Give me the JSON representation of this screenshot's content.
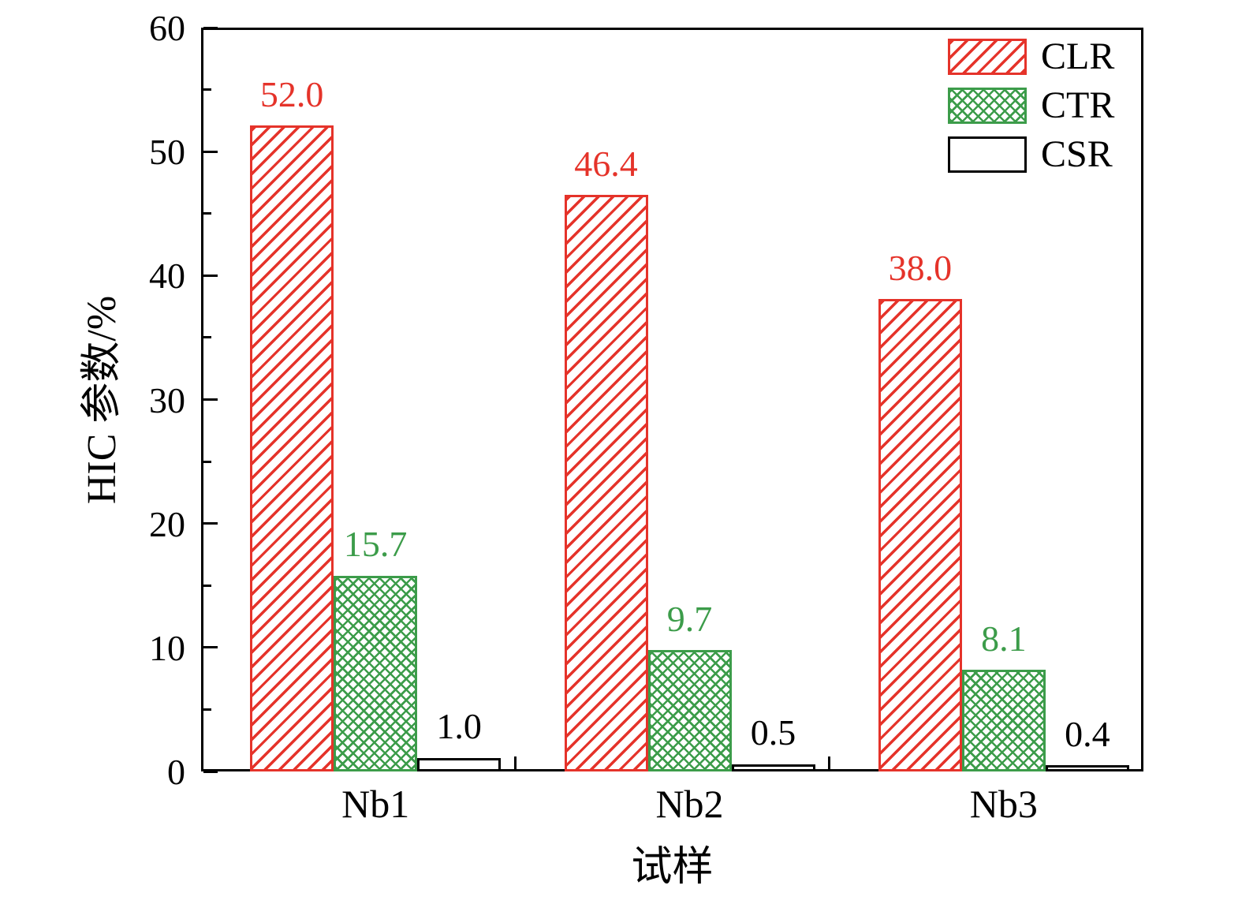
{
  "figure": {
    "background": "#ffffff",
    "axis_color": "#000000"
  },
  "chart_data": {
    "type": "bar",
    "title": "",
    "xlabel": "试样",
    "ylabel": "HIC 参数/%",
    "categories": [
      "Nb1",
      "Nb2",
      "Nb3"
    ],
    "series": [
      {
        "name": "CLR",
        "values": [
          52.0,
          46.4,
          38.0
        ],
        "value_labels": [
          "52.0",
          "46.4",
          "38.0"
        ],
        "color": "#e5332a",
        "pattern": "diagonal"
      },
      {
        "name": "CTR",
        "values": [
          15.7,
          9.7,
          8.1
        ],
        "value_labels": [
          "15.7",
          "9.7",
          "8.1"
        ],
        "color": "#3c9c4a",
        "pattern": "crosshatch"
      },
      {
        "name": "CSR",
        "values": [
          1.0,
          0.5,
          0.4
        ],
        "value_labels": [
          "1.0",
          "0.5",
          "0.4"
        ],
        "color": "#000000",
        "pattern": "none"
      }
    ],
    "ylim": [
      0,
      60
    ],
    "ytick_labels": [
      "0",
      "10",
      "20",
      "30",
      "40",
      "50",
      "60"
    ],
    "ytick_major_step": 10,
    "ytick_minor_step": 5,
    "legend": {
      "position": "top-right",
      "items": [
        "CLR",
        "CTR",
        "CSR"
      ]
    },
    "grid": false
  }
}
